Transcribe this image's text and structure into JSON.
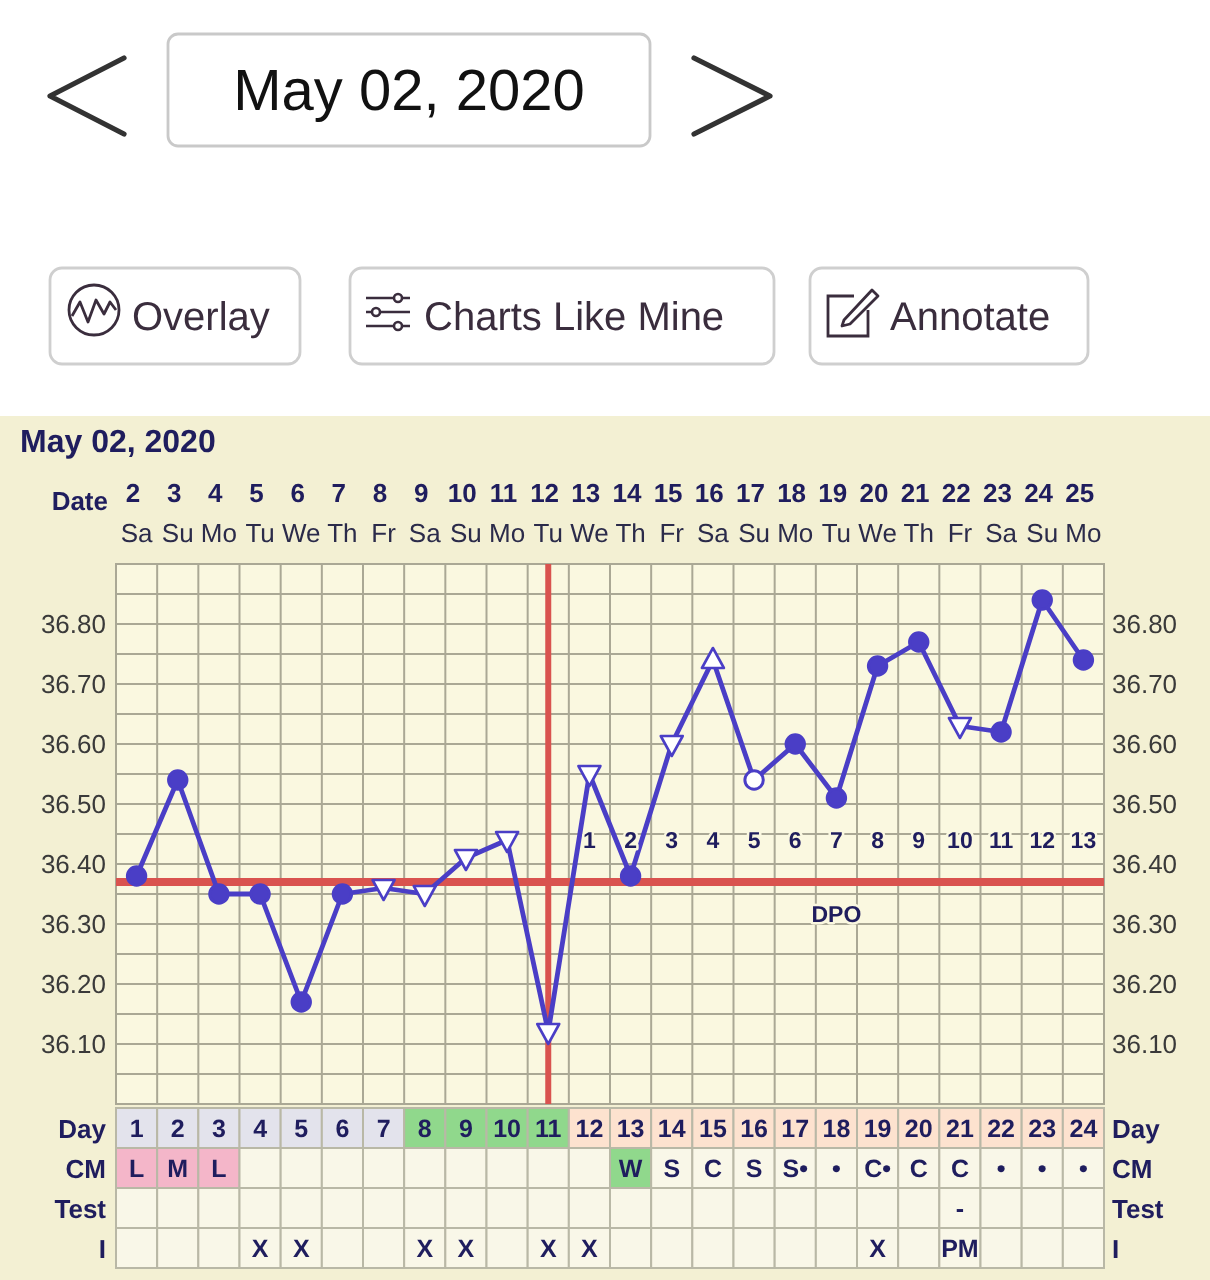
{
  "chart_data": [
    {
      "type": "other",
      "annotations": [
        "May 02, 2020",
        "Overlay",
        "Charts Like Mine",
        "Annotate"
      ]
    },
    {
      "type": "line",
      "title": "May 02, 2020",
      "xlabel": "Date",
      "categories": [
        "2\nSa",
        "3\nSu",
        "4\nMo",
        "5\nTu",
        "6\nWe",
        "7\nTh",
        "8\nFr",
        "9\nSa",
        "10\nSu",
        "11\nMo",
        "12\nTu",
        "13\nWe",
        "14\nTh",
        "15\nFr",
        "16\nSa",
        "17\nSu",
        "18\nMo",
        "19\nTu",
        "20\nWe",
        "21\nTh",
        "22\nFr",
        "23\nSa",
        "24\nSu",
        "25\nMo"
      ],
      "ylim": [
        36.0,
        36.9
      ],
      "yticks": [
        {
          "value": 36.05,
          "label": null
        },
        {
          "value": 36.1,
          "label": "36.10"
        },
        {
          "value": 36.15,
          "label": null
        },
        {
          "value": 36.2,
          "label": "36.20"
        },
        {
          "value": 36.25,
          "label": null
        },
        {
          "value": 36.3,
          "label": "36.30"
        },
        {
          "value": 36.35,
          "label": null
        },
        {
          "value": 36.4,
          "label": "36.40"
        },
        {
          "value": 36.45,
          "label": null
        },
        {
          "value": 36.5,
          "label": "36.50"
        },
        {
          "value": 36.55,
          "label": null
        },
        {
          "value": 36.6,
          "label": "36.60"
        },
        {
          "value": 36.65,
          "label": null
        },
        {
          "value": 36.7,
          "label": "36.70"
        },
        {
          "value": 36.75,
          "label": null
        },
        {
          "value": 36.8,
          "label": "36.80"
        },
        {
          "value": 36.85,
          "label": null
        }
      ],
      "y2lim": [
        36.0,
        36.9
      ],
      "y2ticks": [
        {
          "value": 36.1,
          "label": "36.10"
        },
        {
          "value": 36.2,
          "label": "36.20"
        },
        {
          "value": 36.3,
          "label": "36.30"
        },
        {
          "value": 36.4,
          "label": "36.40"
        },
        {
          "value": 36.5,
          "label": "36.50"
        },
        {
          "value": 36.6,
          "label": "36.60"
        },
        {
          "value": 36.7,
          "label": "36.70"
        },
        {
          "value": 36.8,
          "label": "36.80"
        }
      ],
      "grid": true,
      "series": [
        {
          "type": "line",
          "color": "#4a3ec6",
          "marker": "none",
          "values": [
            36.38,
            36.54,
            36.35,
            36.35,
            36.17,
            36.35,
            36.36,
            36.35,
            36.41,
            36.44,
            36.12,
            36.55,
            36.38,
            36.6,
            36.74,
            36.54,
            36.6,
            36.51,
            36.73,
            36.77,
            36.63,
            36.62,
            36.84,
            36.74
          ]
        },
        {
          "type": "scatter",
          "marker": "circle",
          "color": "#4a3ec6",
          "values": [
            36.38,
            36.54,
            36.35,
            36.35,
            36.17,
            36.35,
            null,
            null,
            null,
            null,
            null,
            null,
            36.38,
            null,
            null,
            null,
            36.6,
            36.51,
            36.73,
            36.77,
            null,
            36.62,
            36.84,
            36.74
          ]
        },
        {
          "type": "scatter",
          "marker": "triangle-down",
          "color": "#ffffff",
          "values": [
            null,
            null,
            null,
            null,
            null,
            null,
            36.36,
            36.35,
            36.41,
            36.44,
            36.12,
            36.55,
            null,
            36.6,
            null,
            null,
            null,
            null,
            null,
            null,
            36.63,
            null,
            null,
            null
          ]
        },
        {
          "type": "scatter",
          "marker": "triangle",
          "color": "#ffffff",
          "values": [
            null,
            null,
            null,
            null,
            null,
            null,
            null,
            null,
            null,
            null,
            null,
            null,
            null,
            null,
            36.74,
            null,
            null,
            null,
            null,
            null,
            null,
            null,
            null,
            null
          ]
        },
        {
          "type": "scatter",
          "marker": "circle",
          "color": "#ffffff",
          "values": [
            null,
            null,
            null,
            null,
            null,
            null,
            null,
            null,
            null,
            null,
            null,
            null,
            null,
            null,
            null,
            36.54,
            null,
            null,
            null,
            null,
            null,
            null,
            null,
            null
          ]
        }
      ],
      "ref_lines": [
        {
          "axis": "y",
          "value": 36.37,
          "color": "#d9534f"
        },
        {
          "axis": "x",
          "value": "12\nTu",
          "color": "#d9534f"
        }
      ],
      "annotations": [
        "1",
        "2",
        "3",
        "4",
        "5",
        "6",
        "7",
        "8",
        "9",
        "10",
        "11",
        "12",
        "13",
        "DPO"
      ]
    },
    {
      "type": "heatmap",
      "categories": [
        null,
        null,
        null,
        null,
        null,
        null,
        null,
        null,
        null,
        null,
        null,
        null,
        null,
        null,
        null,
        null,
        null,
        null,
        null,
        null,
        null,
        null,
        null,
        null
      ],
      "y_categories": [
        "Day",
        "CM",
        "Test",
        "I"
      ],
      "y2_categories": [
        "Day",
        "CM",
        "Test",
        "I"
      ],
      "cells": [
        [
          null,
          null,
          null,
          null,
          null,
          null,
          null,
          null,
          null,
          null,
          null,
          null,
          null,
          null,
          null,
          null,
          null,
          null,
          null,
          null,
          null,
          null,
          null,
          null
        ],
        [
          null,
          null,
          null,
          null,
          null,
          null,
          null,
          null,
          null,
          null,
          null,
          null,
          null,
          null,
          null,
          null,
          null,
          null,
          null,
          null,
          null,
          null,
          null,
          null
        ],
        [
          null,
          null,
          null,
          null,
          null,
          null,
          null,
          null,
          null,
          null,
          null,
          null,
          null,
          null,
          null,
          null,
          null,
          null,
          null,
          null,
          null,
          null,
          null,
          null
        ],
        [
          null,
          null,
          null,
          null,
          null,
          null,
          null,
          null,
          null,
          null,
          null,
          null,
          null,
          null,
          null,
          null,
          null,
          null,
          null,
          null,
          null,
          null,
          null,
          null
        ]
      ],
      "cell_labels": [
        [
          "1",
          "2",
          "3",
          "4",
          "5",
          "6",
          "7",
          "8",
          "9",
          "10",
          "11",
          "12",
          "13",
          "14",
          "15",
          "16",
          "17",
          "18",
          "19",
          "20",
          "21",
          "22",
          "23",
          "24"
        ],
        [
          "L",
          "M",
          "L",
          null,
          null,
          null,
          null,
          null,
          null,
          null,
          null,
          null,
          "W",
          "S",
          "C",
          "S",
          "S•",
          "•",
          "C•",
          "C",
          "C",
          "•",
          "•",
          "•"
        ],
        [
          null,
          null,
          null,
          null,
          null,
          null,
          null,
          null,
          null,
          null,
          null,
          null,
          null,
          null,
          null,
          null,
          null,
          null,
          null,
          null,
          "-",
          null,
          null,
          null
        ],
        [
          null,
          null,
          null,
          "X",
          "X",
          null,
          null,
          "X",
          "X",
          null,
          "X",
          "X",
          null,
          null,
          null,
          null,
          null,
          null,
          "X",
          null,
          "PM",
          null,
          null,
          null
        ]
      ],
      "colors": [
        [
          "#e3e3ec",
          "#e3e3ec",
          "#e3e3ec",
          "#e3e3ec",
          "#e3e3ec",
          "#e3e3ec",
          "#e3e3ec",
          "#90d88c",
          "#90d88c",
          "#90d88c",
          "#90d88c",
          "#fde2cf",
          "#fde2cf",
          "#fde2cf",
          "#fde2cf",
          "#fde2cf",
          "#fde2cf",
          "#fde2cf",
          "#fde2cf",
          "#fde2cf",
          "#fde2cf",
          "#fde2cf",
          "#fde2cf",
          "#fde2cf"
        ],
        [
          "#f4b6c9",
          "#f4b6c9",
          "#f4b6c9",
          null,
          null,
          null,
          null,
          null,
          null,
          null,
          null,
          null,
          "#90d88c",
          null,
          null,
          null,
          null,
          null,
          null,
          null,
          null,
          null,
          null,
          null
        ],
        [
          null,
          null,
          null,
          null,
          null,
          null,
          null,
          null,
          null,
          null,
          null,
          null,
          null,
          null,
          null,
          null,
          null,
          null,
          null,
          null,
          null,
          null,
          null,
          null
        ],
        [
          null,
          null,
          null,
          null,
          null,
          null,
          null,
          null,
          null,
          null,
          null,
          null,
          null,
          null,
          null,
          null,
          null,
          null,
          null,
          null,
          null,
          null,
          null,
          null
        ]
      ]
    }
  ]
}
